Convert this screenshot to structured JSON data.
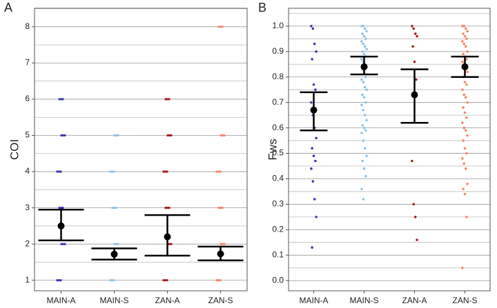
{
  "chart_data": [
    {
      "type": "strip",
      "panel_label": "A",
      "ylabel": "COI",
      "categories": [
        "MAIN-A",
        "MAIN-S",
        "ZAN-A",
        "ZAN-S"
      ],
      "colors": [
        "#3a3ab0",
        "#8fc4e6",
        "#a61e1e",
        "#f4886c"
      ],
      "points": [
        [
          1,
          2,
          3,
          4,
          5,
          6
        ],
        [
          1,
          2,
          3,
          4,
          5
        ],
        [
          1,
          2,
          3,
          4,
          5,
          6
        ],
        [
          1,
          2,
          3,
          4,
          5,
          8
        ]
      ],
      "means": [
        2.5,
        1.72,
        2.2,
        1.73
      ],
      "lower": [
        2.1,
        1.57,
        1.68,
        1.55
      ],
      "upper": [
        2.95,
        1.88,
        2.8,
        1.93
      ],
      "ylim": [
        0.71,
        8.51
      ],
      "yticks": [
        1,
        2,
        3,
        4,
        5,
        6,
        7,
        8
      ],
      "minor_gridlines": [
        1.5,
        2.5,
        3.5,
        4.5,
        5.5,
        6.5,
        7.5,
        8.5
      ],
      "grid": true
    },
    {
      "type": "strip",
      "panel_label": "B",
      "ylabel": "Fws",
      "categories": [
        "MAIN-A",
        "MAIN-S",
        "ZAN-A",
        "ZAN-S"
      ],
      "colors": [
        "#3a3ab0",
        "#8fc4e6",
        "#a61e1e",
        "#f4886c"
      ],
      "points": [
        [
          1.0,
          0.99,
          0.93,
          0.9,
          0.87,
          0.77,
          0.75,
          0.7,
          0.65,
          0.6,
          0.56,
          0.52,
          0.49,
          0.47,
          0.44,
          0.39,
          0.32,
          0.25,
          0.13
        ],
        [
          1.0,
          1.0,
          0.99,
          0.98,
          0.97,
          0.96,
          0.95,
          0.94,
          0.93,
          0.92,
          0.91,
          0.9,
          0.89,
          0.88,
          0.87,
          0.86,
          0.85,
          0.84,
          0.83,
          0.82,
          0.8,
          0.79,
          0.78,
          0.76,
          0.75,
          0.73,
          0.72,
          0.7,
          0.69,
          0.67,
          0.65,
          0.63,
          0.61,
          0.6,
          0.59,
          0.58,
          0.55,
          0.52,
          0.49,
          0.47,
          0.44,
          0.41,
          0.36,
          0.32
        ],
        [
          1.0,
          0.99,
          0.97,
          0.96,
          0.92,
          0.86,
          0.79,
          0.47,
          0.3,
          0.25,
          0.16
        ],
        [
          1.0,
          1.0,
          0.99,
          0.98,
          0.97,
          0.96,
          0.95,
          0.94,
          0.93,
          0.92,
          0.9,
          0.89,
          0.88,
          0.87,
          0.86,
          0.85,
          0.83,
          0.82,
          0.8,
          0.78,
          0.77,
          0.75,
          0.73,
          0.72,
          0.7,
          0.68,
          0.66,
          0.64,
          0.62,
          0.6,
          0.59,
          0.57,
          0.55,
          0.52,
          0.5,
          0.48,
          0.46,
          0.44,
          0.38,
          0.36,
          0.34,
          0.25,
          0.05
        ]
      ],
      "means": [
        0.67,
        0.84,
        0.73,
        0.84
      ],
      "lower": [
        0.59,
        0.81,
        0.62,
        0.8
      ],
      "upper": [
        0.74,
        0.88,
        0.83,
        0.88
      ],
      "ylim": [
        -0.04,
        1.07
      ],
      "yticks": [
        {
          "value": 0,
          "label": "0.0"
        },
        0.1,
        0.2,
        0.3,
        0.4,
        0.5,
        0.6,
        0.7,
        0.8,
        0.9,
        {
          "value": 1,
          "label": "1.0"
        }
      ],
      "minor_gridlines": [
        0.05,
        0.15,
        0.25,
        0.35,
        0.45,
        0.55,
        0.65,
        0.75,
        0.85,
        0.95,
        1.05
      ],
      "grid": true
    }
  ]
}
